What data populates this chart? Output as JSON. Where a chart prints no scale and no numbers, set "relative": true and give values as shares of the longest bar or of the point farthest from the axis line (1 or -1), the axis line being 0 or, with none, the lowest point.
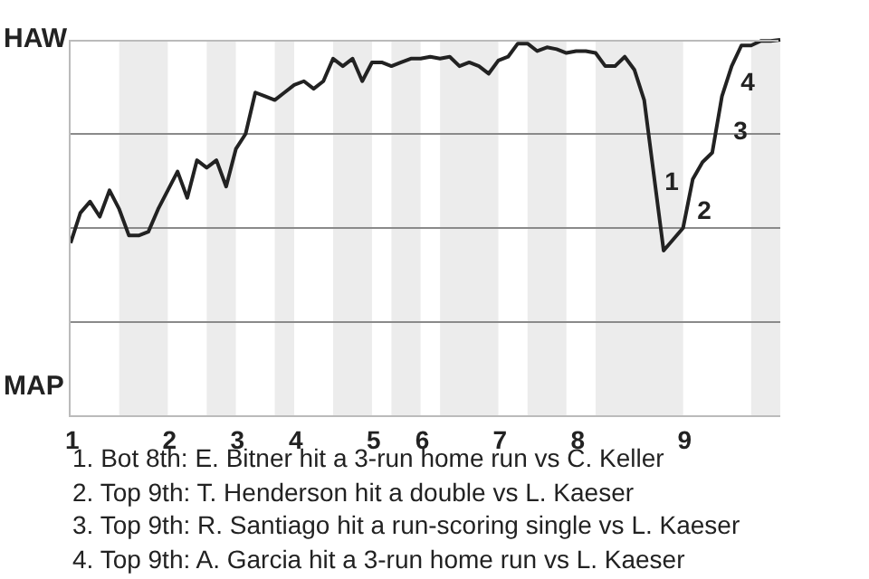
{
  "chart_data": {
    "type": "line",
    "relative": true,
    "categories": [
      "1",
      null,
      null,
      null,
      null,
      null,
      null,
      null,
      null,
      null,
      "2",
      null,
      null,
      null,
      null,
      null,
      null,
      "3",
      null,
      null,
      null,
      null,
      null,
      "4",
      null,
      null,
      null,
      null,
      null,
      null,
      null,
      "5",
      null,
      null,
      null,
      null,
      "6",
      null,
      null,
      null,
      null,
      null,
      null,
      null,
      "7",
      null,
      null,
      null,
      null,
      null,
      null,
      null,
      "8",
      null,
      null,
      null,
      null,
      null,
      null,
      null,
      null,
      null,
      null,
      "9",
      null,
      null,
      null,
      null,
      null,
      null,
      null,
      null,
      null,
      null
    ],
    "series": [
      {
        "color": "#222222",
        "values": [
          0.46,
          0.54,
          0.57,
          0.53,
          0.6,
          0.55,
          0.48,
          0.48,
          0.49,
          0.55,
          0.6,
          0.65,
          0.58,
          0.68,
          0.66,
          0.68,
          0.61,
          0.71,
          0.75,
          0.86,
          0.85,
          0.84,
          0.86,
          0.88,
          0.89,
          0.87,
          0.89,
          0.95,
          0.93,
          0.95,
          0.89,
          0.94,
          0.94,
          0.93,
          0.94,
          0.95,
          0.95,
          0.955,
          0.95,
          0.955,
          0.93,
          0.94,
          0.93,
          0.91,
          0.945,
          0.955,
          0.99,
          0.99,
          0.97,
          0.98,
          0.975,
          0.965,
          0.97,
          0.97,
          0.965,
          0.93,
          0.93,
          0.955,
          0.92,
          0.84,
          0.64,
          0.44,
          0.47,
          0.5,
          0.63,
          0.675,
          0.7,
          0.85,
          0.93,
          0.985,
          0.985,
          0.997,
          0.997,
          1.0
        ]
      }
    ],
    "ref_lines": [
      {
        "axis": "y",
        "value": 0.25,
        "color": "#8a8a8a"
      },
      {
        "axis": "y",
        "value": 0.5,
        "color": "#8a8a8a"
      },
      {
        "axis": "y",
        "value": 0.75,
        "color": "#8a8a8a"
      }
    ],
    "annotations": [
      "HAW",
      "MAP",
      "1",
      "2",
      "3",
      "4",
      "1. Bot 8th: E. Bitner hit a 3-run home run vs C. Keller",
      "2. Top 9th: T. Henderson hit a double vs L. Kaeser",
      "3. Top 9th: R. Santiago hit a run-scoring single vs L. Kaeser",
      "4. Top 9th: A. Garcia hit a 3-run home run vs L. Kaeser"
    ],
    "marker": "none",
    "line_style": "solid"
  }
}
